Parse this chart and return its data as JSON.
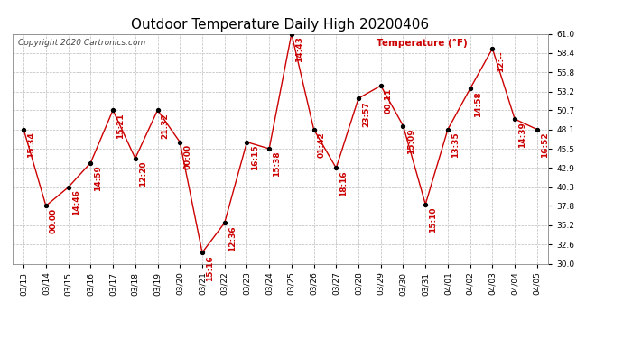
{
  "title": "Outdoor Temperature Daily High 20200406",
  "copyright": "Copyright 2020 Cartronics.com",
  "legend_label": "Temperature (°F)",
  "dates": [
    "03/13",
    "03/14",
    "03/15",
    "03/16",
    "03/17",
    "03/18",
    "03/19",
    "03/20",
    "03/21",
    "03/22",
    "03/23",
    "03/24",
    "03/25",
    "03/26",
    "03/27",
    "03/28",
    "03/29",
    "03/30",
    "03/31",
    "04/01",
    "04/02",
    "04/03",
    "04/04",
    "04/05"
  ],
  "values": [
    48.1,
    37.8,
    40.3,
    43.6,
    50.7,
    44.2,
    50.7,
    46.4,
    31.5,
    35.5,
    46.4,
    45.5,
    61.0,
    48.1,
    42.9,
    52.3,
    54.0,
    48.6,
    38.0,
    48.1,
    53.6,
    59.0,
    49.5,
    48.1
  ],
  "time_labels": [
    "15:34",
    "00:00",
    "14:46",
    "14:59",
    "15:21",
    "12:20",
    "21:32",
    "00:00",
    "15:16",
    "12:36",
    "16:15",
    "15:38",
    "14:43",
    "01:42",
    "18:16",
    "23:57",
    "00:11",
    "15:09",
    "15:10",
    "13:35",
    "14:58",
    "12:--",
    "14:39",
    "16:52"
  ],
  "ylim_min": 30.0,
  "ylim_max": 61.0,
  "yticks": [
    30.0,
    32.6,
    35.2,
    37.8,
    40.3,
    42.9,
    45.5,
    48.1,
    50.7,
    53.2,
    55.8,
    58.4,
    61.0
  ],
  "line_color": "#cc0000",
  "marker_color": "#000000",
  "background_color": "#ffffff",
  "grid_color": "#bbbbbb",
  "title_fontsize": 11,
  "tick_fontsize": 6.5,
  "annotation_fontsize": 6.5,
  "annotation_color": "#cc0000",
  "copyright_color": "#444444",
  "copyright_fontsize": 6.5,
  "legend_fontsize": 7.5
}
